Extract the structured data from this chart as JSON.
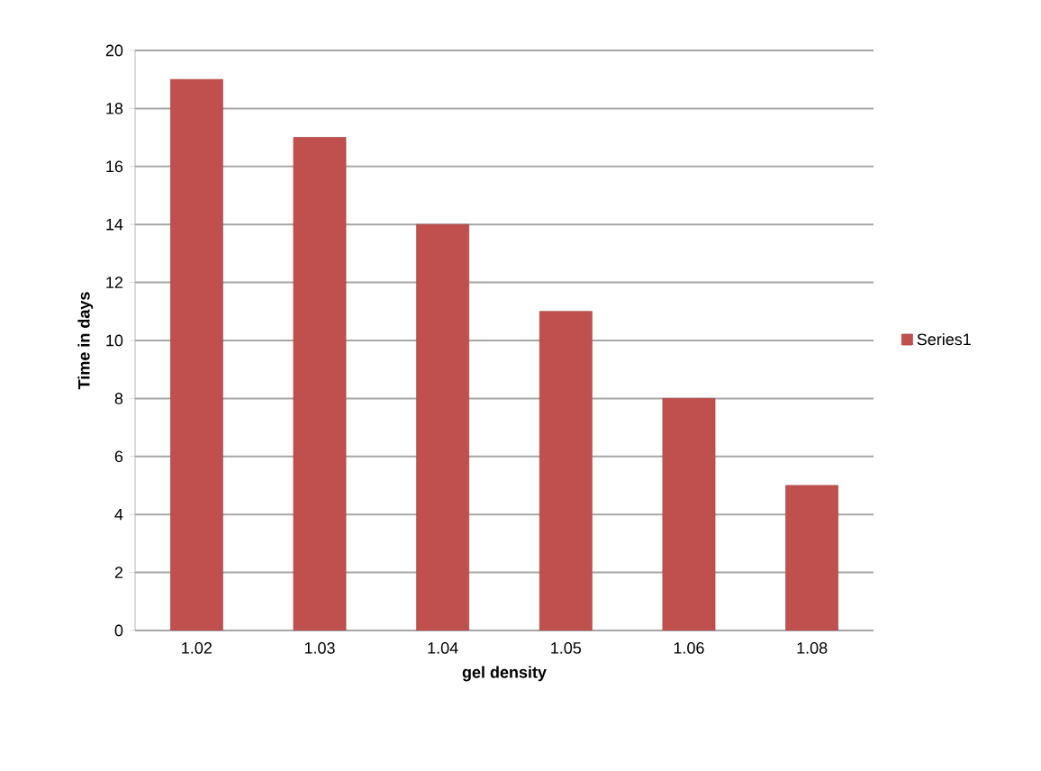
{
  "chart_data": {
    "type": "bar",
    "xlabel": "gel density",
    "ylabel": "Time in days",
    "categories": [
      "1.02",
      "1.03",
      "1.04",
      "1.05",
      "1.06",
      "1.08"
    ],
    "series": [
      {
        "name": "Series1",
        "color": "#c0504d",
        "values": [
          19,
          17,
          14,
          11,
          8,
          5
        ]
      }
    ],
    "ylim": [
      0,
      20
    ],
    "yticks": [
      0,
      2,
      4,
      6,
      8,
      10,
      12,
      14,
      16,
      18,
      20
    ],
    "grid": "y",
    "legend": "right"
  }
}
